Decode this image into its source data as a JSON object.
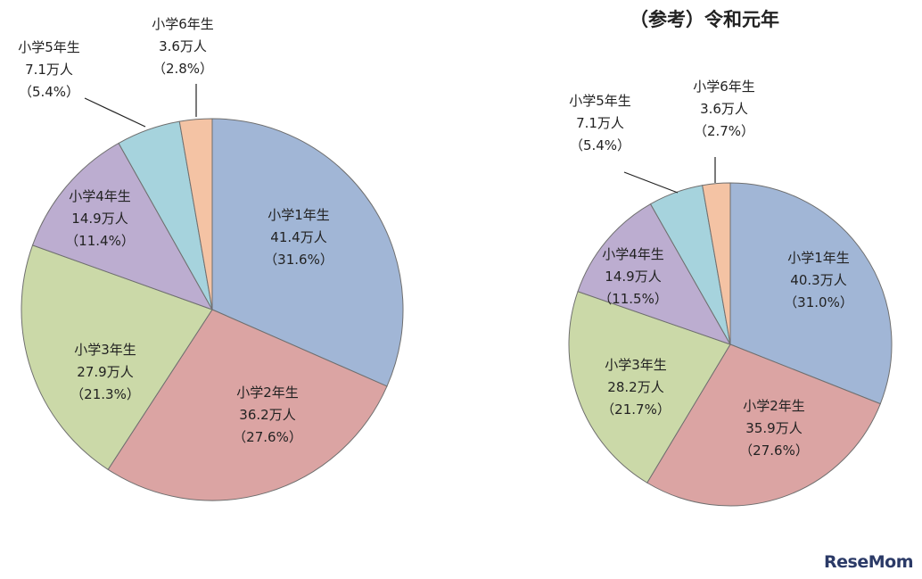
{
  "chart_data": [
    {
      "type": "pie",
      "title": "",
      "slices": [
        {
          "name": "小学1年生",
          "amount": "41.4万人",
          "percent_label": "（31.6%）",
          "value": 41.4,
          "color": "#a1b6d6"
        },
        {
          "name": "小学2年生",
          "amount": "36.2万人",
          "percent_label": "（27.6%）",
          "value": 36.2,
          "color": "#dba4a3"
        },
        {
          "name": "小学3年生",
          "amount": "27.9万人",
          "percent_label": "（21.3%）",
          "value": 27.9,
          "color": "#cbd9a8"
        },
        {
          "name": "小学4年生",
          "amount": "14.9万人",
          "percent_label": "（11.4%）",
          "value": 14.9,
          "color": "#bcadd0"
        },
        {
          "name": "小学5年生",
          "amount": "7.1万人",
          "percent_label": "（5.4%）",
          "value": 7.1,
          "color": "#a6d3dd"
        },
        {
          "name": "小学6年生",
          "amount": "3.6万人",
          "percent_label": "（2.8%）",
          "value": 3.6,
          "color": "#f4c3a4"
        }
      ]
    },
    {
      "type": "pie",
      "title": "（参考）令和元年",
      "slices": [
        {
          "name": "小学1年生",
          "amount": "40.3万人",
          "percent_label": "（31.0%）",
          "value": 40.3,
          "color": "#a1b6d6"
        },
        {
          "name": "小学2年生",
          "amount": "35.9万人",
          "percent_label": "（27.6%）",
          "value": 35.9,
          "color": "#dba4a3"
        },
        {
          "name": "小学3年生",
          "amount": "28.2万人",
          "percent_label": "（21.7%）",
          "value": 28.2,
          "color": "#cbd9a8"
        },
        {
          "name": "小学4年生",
          "amount": "14.9万人",
          "percent_label": "（11.5%）",
          "value": 14.9,
          "color": "#bcadd0"
        },
        {
          "name": "小学5年生",
          "amount": "7.1万人",
          "percent_label": "（5.4%）",
          "value": 7.1,
          "color": "#a6d3dd"
        },
        {
          "name": "小学6年生",
          "amount": "3.6万人",
          "percent_label": "（2.7%）",
          "value": 3.6,
          "color": "#f4c3a4"
        }
      ]
    }
  ],
  "watermark": "ReseMom"
}
